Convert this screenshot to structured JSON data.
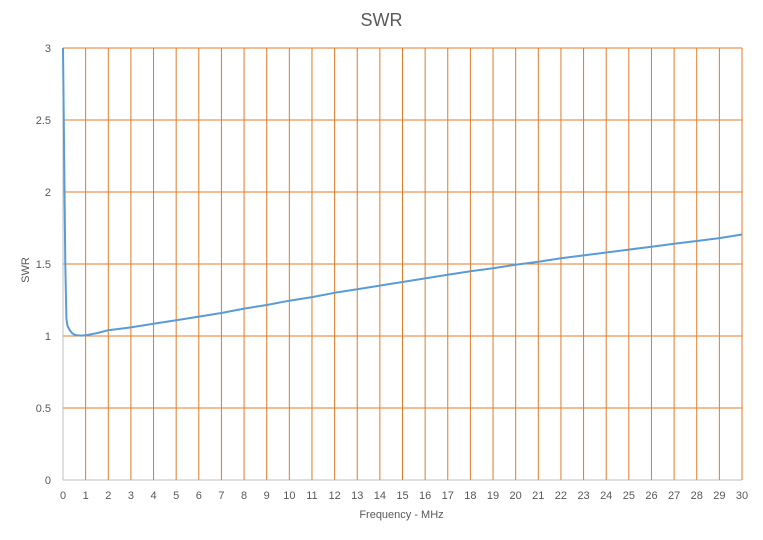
{
  "chart_data": {
    "type": "line",
    "title": "SWR",
    "xlabel": "Frequency - MHz",
    "ylabel": "SWR",
    "xlim": [
      0,
      30
    ],
    "ylim": [
      0,
      3
    ],
    "x_ticks": [
      0,
      1,
      2,
      3,
      4,
      5,
      6,
      7,
      8,
      9,
      10,
      11,
      12,
      13,
      14,
      15,
      16,
      17,
      18,
      19,
      20,
      21,
      22,
      23,
      24,
      25,
      26,
      27,
      28,
      29,
      30
    ],
    "y_ticks": [
      0,
      0.5,
      1,
      1.5,
      2,
      2.5,
      3
    ],
    "y_tick_labels": [
      "0",
      "0.5",
      "1",
      "1.5",
      "2",
      "2.5",
      "3"
    ],
    "grid": true,
    "colors": {
      "line": "#5b9bd5",
      "grid": "#e07b2a",
      "axis": "#bfbfbf"
    },
    "series": [
      {
        "x": [
          0,
          0.1,
          0.15,
          0.2,
          0.3,
          0.4,
          0.5,
          0.6,
          0.8,
          1,
          1.5,
          2,
          3,
          4,
          5,
          6,
          7,
          8,
          9,
          10,
          11,
          12,
          13,
          14,
          15,
          16,
          17,
          18,
          19,
          20,
          21,
          22,
          23,
          24,
          25,
          26,
          27,
          28,
          29,
          30
        ],
        "y": [
          3,
          1.5,
          1.12,
          1.07,
          1.04,
          1.02,
          1.01,
          1.005,
          1.003,
          1.005,
          1.02,
          1.04,
          1.06,
          1.085,
          1.11,
          1.135,
          1.16,
          1.19,
          1.215,
          1.245,
          1.27,
          1.3,
          1.325,
          1.35,
          1.375,
          1.4,
          1.425,
          1.45,
          1.47,
          1.495,
          1.515,
          1.54,
          1.56,
          1.58,
          1.6,
          1.62,
          1.64,
          1.66,
          1.68,
          1.705
        ]
      }
    ]
  }
}
